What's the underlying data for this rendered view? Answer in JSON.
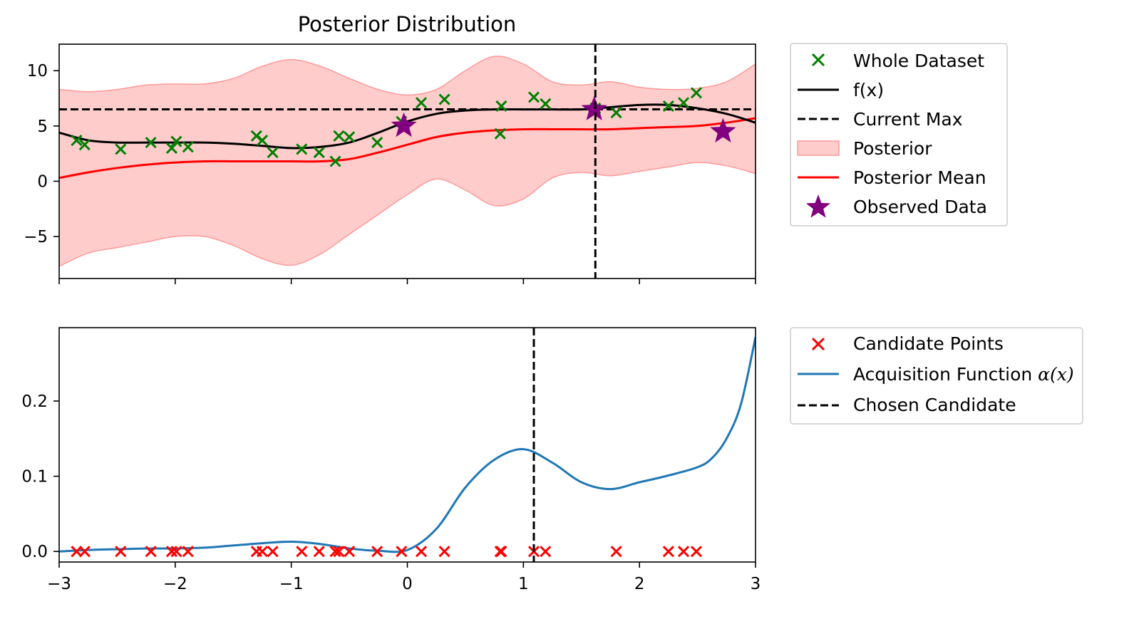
{
  "chart_data": [
    {
      "type": "line",
      "title": "Posterior Distribution",
      "xlim": [
        -3,
        3
      ],
      "ylim": [
        -8.8,
        12.4
      ],
      "xticks": [
        -3,
        -2,
        -1,
        0,
        1,
        2,
        3
      ],
      "xtick_labels_visible": false,
      "yticks": [
        -5,
        0,
        5,
        10
      ],
      "ytick_labels": [
        "−5",
        "0",
        "5",
        "10"
      ],
      "current_max": 6.5,
      "chosen_x": 1.62,
      "legend_location": "outside upper-right",
      "legend": [
        "Whole Dataset",
        "f(x)",
        "Current Max",
        "Posterior",
        "Posterior Mean",
        "Observed Data"
      ],
      "colors": {
        "whole_dataset": "#008000",
        "fx": "#000000",
        "current_max": "#000000",
        "posterior_fill": "#ffcccc",
        "posterior_edge": "#ff9999",
        "posterior_mean": "#ff0000",
        "observed": "#800080"
      },
      "whole_dataset": [
        {
          "x": -2.85,
          "y": 3.7
        },
        {
          "x": -2.78,
          "y": 3.3
        },
        {
          "x": -2.47,
          "y": 2.9
        },
        {
          "x": -2.21,
          "y": 3.5
        },
        {
          "x": -2.03,
          "y": 3.0
        },
        {
          "x": -1.99,
          "y": 3.6
        },
        {
          "x": -1.89,
          "y": 3.1
        },
        {
          "x": -1.3,
          "y": 4.1
        },
        {
          "x": -1.25,
          "y": 3.7
        },
        {
          "x": -1.16,
          "y": 2.6
        },
        {
          "x": -0.91,
          "y": 2.9
        },
        {
          "x": -0.76,
          "y": 2.6
        },
        {
          "x": -0.62,
          "y": 1.8
        },
        {
          "x": -0.59,
          "y": 4.1
        },
        {
          "x": -0.5,
          "y": 4.0
        },
        {
          "x": -0.26,
          "y": 3.5
        },
        {
          "x": -0.05,
          "y": 5.4
        },
        {
          "x": 0.12,
          "y": 7.1
        },
        {
          "x": 0.32,
          "y": 7.4
        },
        {
          "x": 0.8,
          "y": 4.3
        },
        {
          "x": 0.81,
          "y": 6.8
        },
        {
          "x": 1.09,
          "y": 7.6
        },
        {
          "x": 1.19,
          "y": 7.0
        },
        {
          "x": 1.62,
          "y": 6.6
        },
        {
          "x": 1.8,
          "y": 6.2
        },
        {
          "x": 2.25,
          "y": 6.8
        },
        {
          "x": 2.38,
          "y": 7.1
        },
        {
          "x": 2.49,
          "y": 8.0
        }
      ],
      "observed": [
        {
          "x": -0.03,
          "y": 5.0
        },
        {
          "x": 1.61,
          "y": 6.5
        },
        {
          "x": 2.72,
          "y": 4.5
        }
      ],
      "fx": {
        "x": [
          -3,
          -2.75,
          -2.5,
          -2.25,
          -2,
          -1.75,
          -1.5,
          -1.25,
          -1,
          -0.75,
          -0.5,
          -0.25,
          0,
          0.25,
          0.5,
          0.75,
          1,
          1.25,
          1.5,
          1.75,
          2,
          2.25,
          2.5,
          2.75,
          3
        ],
        "y": [
          4.4,
          3.7,
          3.5,
          3.5,
          3.5,
          3.5,
          3.4,
          3.2,
          3.0,
          3.1,
          3.5,
          4.4,
          5.4,
          6.1,
          6.4,
          6.5,
          6.5,
          6.5,
          6.5,
          6.7,
          6.9,
          6.9,
          6.6,
          6.1,
          5.3
        ]
      },
      "posterior_mean": {
        "x": [
          -3,
          -2.75,
          -2.5,
          -2.25,
          -2,
          -1.75,
          -1.5,
          -1.25,
          -1,
          -0.75,
          -0.5,
          -0.25,
          0,
          0.25,
          0.5,
          0.75,
          1,
          1.25,
          1.5,
          1.75,
          2,
          2.25,
          2.5,
          2.75,
          3
        ],
        "y": [
          0.3,
          0.8,
          1.2,
          1.5,
          1.7,
          1.8,
          1.8,
          1.8,
          1.8,
          1.8,
          2.0,
          2.6,
          3.3,
          4.0,
          4.4,
          4.6,
          4.7,
          4.7,
          4.7,
          4.7,
          4.8,
          4.9,
          5.0,
          5.3,
          5.7
        ]
      },
      "posterior_upper": {
        "x": [
          -3,
          -2.75,
          -2.5,
          -2.25,
          -2,
          -1.75,
          -1.5,
          -1.25,
          -1,
          -0.75,
          -0.5,
          -0.25,
          0,
          0.25,
          0.5,
          0.75,
          1,
          1.25,
          1.5,
          1.75,
          2,
          2.25,
          2.5,
          2.75,
          3
        ],
        "y": [
          8.3,
          8.1,
          8.3,
          8.7,
          8.8,
          8.8,
          9.3,
          10.4,
          11.0,
          10.4,
          9.3,
          8.3,
          7.8,
          8.3,
          10.0,
          11.3,
          10.6,
          9.0,
          8.7,
          9.0,
          8.5,
          8.3,
          8.4,
          9.0,
          10.6
        ]
      },
      "posterior_lower": {
        "x": [
          -3,
          -2.75,
          -2.5,
          -2.25,
          -2,
          -1.75,
          -1.5,
          -1.25,
          -1,
          -0.75,
          -0.5,
          -0.25,
          0,
          0.25,
          0.5,
          0.75,
          1,
          1.25,
          1.5,
          1.75,
          2,
          2.25,
          2.5,
          2.75,
          3
        ],
        "y": [
          -7.7,
          -6.5,
          -6.0,
          -5.5,
          -5.0,
          -5.0,
          -5.8,
          -7.0,
          -7.6,
          -6.6,
          -4.8,
          -3.0,
          -1.2,
          0.2,
          -0.8,
          -2.2,
          -1.6,
          0.3,
          0.8,
          0.5,
          0.9,
          1.3,
          1.7,
          1.4,
          0.7
        ]
      }
    },
    {
      "type": "line",
      "xlim": [
        -3,
        3
      ],
      "ylim": [
        -0.014,
        0.2975
      ],
      "xticks": [
        -3,
        -2,
        -1,
        0,
        1,
        2,
        3
      ],
      "xtick_labels": [
        "−3",
        "−2",
        "−1",
        "0",
        "1",
        "2",
        "3"
      ],
      "yticks": [
        0.0,
        0.1,
        0.2
      ],
      "ytick_labels": [
        "0.0",
        "0.1",
        "0.2"
      ],
      "chosen_x": 1.09,
      "legend_location": "outside upper-right",
      "legend": [
        "Candidate Points",
        "Acquisition Function ",
        "Chosen Candidate"
      ],
      "legend_math": "α(x)",
      "colors": {
        "candidates": "#ff0000",
        "acquisition": "#1f77b4",
        "chosen": "#000000"
      },
      "candidates": {
        "x": [
          -2.85,
          -2.78,
          -2.47,
          -2.21,
          -2.03,
          -1.99,
          -1.89,
          -1.3,
          -1.25,
          -1.16,
          -0.91,
          -0.76,
          -0.62,
          -0.59,
          -0.5,
          -0.26,
          -0.05,
          0.12,
          0.32,
          0.8,
          0.81,
          1.09,
          1.19,
          1.8,
          2.25,
          2.38,
          2.49
        ],
        "y": 0.0
      },
      "acquisition": {
        "x": [
          -3,
          -2.75,
          -2.5,
          -2.25,
          -2,
          -1.75,
          -1.5,
          -1.25,
          -1,
          -0.75,
          -0.5,
          -0.25,
          0,
          0.25,
          0.5,
          0.75,
          1,
          1.25,
          1.5,
          1.75,
          2,
          2.25,
          2.5,
          2.625,
          2.75,
          2.875,
          3
        ],
        "y": [
          0.0,
          0.002,
          0.003,
          0.004,
          0.004,
          0.005,
          0.008,
          0.011,
          0.013,
          0.01,
          0.004,
          0.001,
          0.002,
          0.03,
          0.085,
          0.122,
          0.136,
          0.118,
          0.092,
          0.083,
          0.092,
          0.101,
          0.112,
          0.124,
          0.15,
          0.196,
          0.285
        ]
      }
    }
  ]
}
